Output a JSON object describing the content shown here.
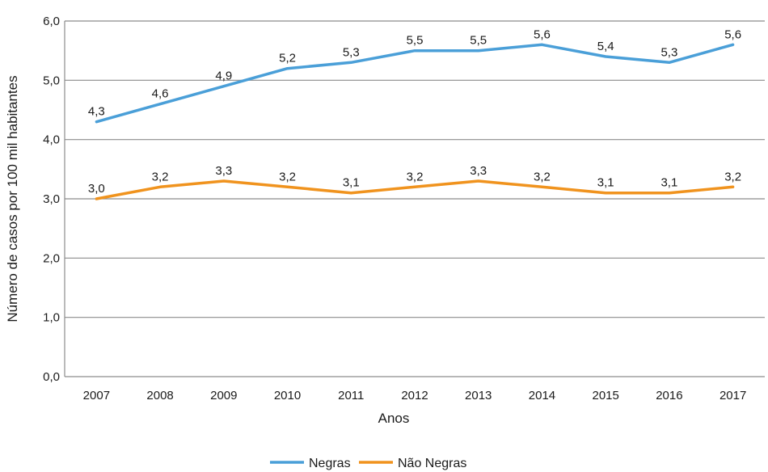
{
  "chart_data": {
    "type": "line",
    "xlabel": "Anos",
    "ylabel": "Número de casos por 100 mil habitantes",
    "ylim": [
      0,
      6
    ],
    "yticks": [
      "0,0",
      "1,0",
      "2,0",
      "3,0",
      "4,0",
      "5,0",
      "6,0"
    ],
    "grid": true,
    "legend_position": "bottom-center",
    "categories": [
      "2007",
      "2008",
      "2009",
      "2010",
      "2011",
      "2012",
      "2013",
      "2014",
      "2015",
      "2016",
      "2017"
    ],
    "series": [
      {
        "name": "Negras",
        "color": "#4a9fd8",
        "values": [
          4.3,
          4.6,
          4.9,
          5.2,
          5.3,
          5.5,
          5.5,
          5.6,
          5.4,
          5.3,
          5.6
        ],
        "labels": [
          "4,3",
          "4,6",
          "4,9",
          "5,2",
          "5,3",
          "5,5",
          "5,5",
          "5,6",
          "5,4",
          "5,3",
          "5,6"
        ]
      },
      {
        "name": "Não Negras",
        "color": "#f0931e",
        "values": [
          3.0,
          3.2,
          3.3,
          3.2,
          3.1,
          3.2,
          3.3,
          3.2,
          3.1,
          3.1,
          3.2
        ],
        "labels": [
          "3,0",
          "3,2",
          "3,3",
          "3,2",
          "3,1",
          "3,2",
          "3,3",
          "3,2",
          "3,1",
          "3,1",
          "3,2"
        ]
      }
    ]
  }
}
